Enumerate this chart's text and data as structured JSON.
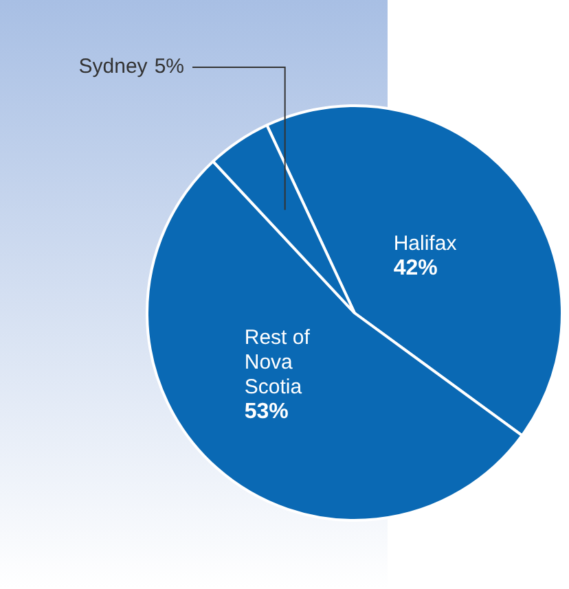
{
  "chart_data": {
    "type": "pie",
    "categories": [
      "Halifax",
      "Rest of Nova Scotia",
      "Sydney"
    ],
    "values": [
      42,
      53,
      5
    ],
    "colors": [
      "#0a69b4",
      "#0a69b4",
      "#0a69b4"
    ],
    "value_labels": [
      "42%",
      "53%",
      "5%"
    ]
  }
}
